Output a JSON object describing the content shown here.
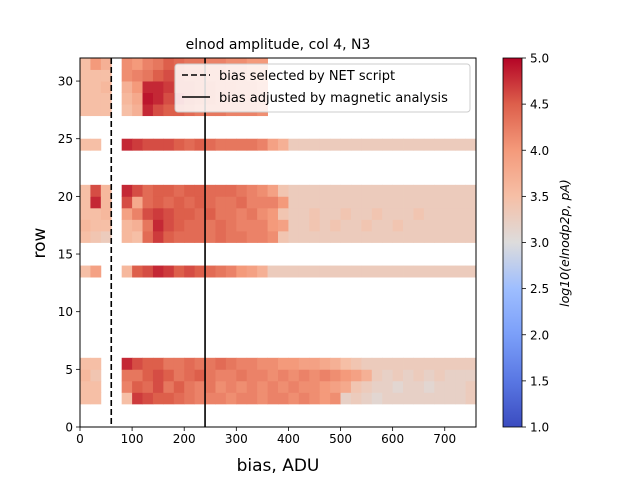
{
  "chart_data": {
    "type": "heatmap",
    "title": "elnod amplitude, col 4, N3",
    "xlabel": "bias, ADU",
    "ylabel": "row",
    "xlim": [
      0,
      760
    ],
    "ylim": [
      0,
      32
    ],
    "x_ticks": [
      "0",
      "100",
      "200",
      "300",
      "400",
      "500",
      "600",
      "700"
    ],
    "y_ticks": [
      "0",
      "5",
      "10",
      "15",
      "20",
      "25",
      "30"
    ],
    "bin_width": 20,
    "colorbar": {
      "label": "log10(elnodp2p, pA)",
      "range": [
        1.0,
        5.0
      ],
      "ticks": [
        "1.0",
        "1.5",
        "2.0",
        "2.5",
        "3.0",
        "3.5",
        "4.0",
        "4.5",
        "5.0"
      ],
      "colormap": "coolwarm"
    },
    "lines": [
      {
        "label": "bias selected by NET script",
        "x": 60,
        "style": "dashed",
        "color": "#000000"
      },
      {
        "label": "bias adjusted by magnetic analysis",
        "x": 240,
        "style": "solid",
        "color": "#000000"
      }
    ],
    "legend_position": "top-right",
    "grid": false,
    "rows": [
      {
        "row": 3,
        "levels": [
          3.5,
          3.5,
          null,
          null,
          3.5,
          4.7,
          4.6,
          4.5,
          4.5,
          4.4,
          4.3,
          4.2,
          4.2,
          4.2,
          4.1,
          4.2,
          4.2,
          4.1,
          4.2,
          4.2,
          4.1,
          4.2,
          4.1,
          4.0,
          4.1,
          3.2,
          3.3,
          3.2,
          3.1,
          3.2,
          3.2,
          3.2,
          3.2,
          3.2,
          3.2,
          3.2,
          3.2,
          3.3
        ]
      },
      {
        "row": 4,
        "levels": [
          3.5,
          3.5,
          null,
          null,
          4.2,
          4.5,
          4.4,
          4.6,
          4.3,
          4.5,
          4.3,
          4.2,
          4.3,
          4.1,
          4.2,
          4.1,
          4.2,
          4.1,
          4.2,
          4.1,
          4.2,
          4.1,
          4.1,
          4.0,
          3.9,
          3.8,
          3.4,
          3.3,
          3.2,
          3.2,
          3.1,
          3.2,
          3.2,
          3.1,
          3.2,
          3.2,
          3.2,
          3.3
        ]
      },
      {
        "row": 5,
        "levels": [
          3.6,
          3.4,
          null,
          null,
          4.3,
          4.3,
          4.5,
          4.6,
          4.5,
          4.3,
          4.4,
          4.5,
          4.3,
          4.2,
          4.2,
          4.3,
          4.2,
          4.2,
          4.1,
          4.2,
          4.1,
          4.2,
          4.1,
          4.2,
          4.1,
          4.0,
          3.9,
          3.7,
          3.3,
          3.2,
          3.3,
          3.2,
          3.3,
          3.2,
          3.3,
          3.2,
          3.2,
          3.2
        ]
      },
      {
        "row": 6,
        "levels": [
          3.5,
          3.5,
          null,
          null,
          4.8,
          4.6,
          4.5,
          4.5,
          4.3,
          4.3,
          4.4,
          4.3,
          4.3,
          4.4,
          4.3,
          4.2,
          4.2,
          4.1,
          4.1,
          4.0,
          4.0,
          3.9,
          3.9,
          3.8,
          3.7,
          3.5,
          3.4,
          3.3,
          3.3,
          3.3,
          3.3,
          3.3,
          3.3,
          3.3,
          3.3,
          3.3,
          3.3,
          3.3
        ]
      },
      {
        "row": 14,
        "levels": [
          3.5,
          3.9,
          null,
          null,
          3.6,
          4.5,
          4.6,
          4.8,
          4.7,
          4.5,
          4.6,
          4.5,
          4.4,
          4.3,
          4.2,
          4.0,
          3.9,
          3.7,
          3.3,
          3.3,
          3.3,
          3.3,
          3.3,
          3.3,
          3.3,
          3.3,
          3.3,
          3.3,
          3.3,
          3.3,
          3.3,
          3.3,
          3.3,
          3.3,
          3.3,
          3.3,
          3.3,
          3.3
        ]
      },
      {
        "row": 17,
        "levels": [
          3.5,
          3.4,
          3.3,
          null,
          3.6,
          3.5,
          4.4,
          4.7,
          4.5,
          4.4,
          4.4,
          4.4,
          4.3,
          4.4,
          4.3,
          4.3,
          4.2,
          4.2,
          4.1,
          3.4,
          3.3,
          3.3,
          3.3,
          3.3,
          3.3,
          3.3,
          3.3,
          3.3,
          3.3,
          3.3,
          3.3,
          3.3,
          3.3,
          3.3,
          3.3,
          3.3,
          3.3,
          3.3
        ]
      },
      {
        "row": 18,
        "levels": [
          3.6,
          3.5,
          3.5,
          null,
          3.6,
          3.7,
          4.3,
          4.8,
          4.6,
          4.5,
          4.4,
          4.4,
          4.3,
          4.4,
          4.3,
          4.2,
          4.2,
          4.2,
          4.0,
          3.9,
          3.3,
          3.3,
          3.4,
          3.3,
          3.4,
          3.3,
          3.3,
          3.4,
          3.3,
          3.3,
          3.4,
          3.3,
          3.3,
          3.3,
          3.3,
          3.3,
          3.3,
          3.3
        ]
      },
      {
        "row": 19,
        "levels": [
          3.5,
          3.5,
          3.6,
          null,
          3.9,
          4.2,
          4.6,
          4.7,
          4.6,
          4.5,
          4.5,
          4.4,
          4.5,
          4.3,
          4.3,
          4.2,
          4.3,
          4.1,
          4.0,
          3.4,
          3.3,
          3.3,
          3.4,
          3.3,
          3.3,
          3.4,
          3.3,
          3.3,
          3.4,
          3.3,
          3.3,
          3.3,
          3.4,
          3.3,
          3.3,
          3.3,
          3.3,
          3.3
        ]
      },
      {
        "row": 20,
        "levels": [
          3.5,
          4.8,
          3.6,
          null,
          4.6,
          3.8,
          4.4,
          4.5,
          4.4,
          4.5,
          4.4,
          4.5,
          4.4,
          4.3,
          4.3,
          4.4,
          4.2,
          4.2,
          4.2,
          4.0,
          3.3,
          3.3,
          3.3,
          3.3,
          3.3,
          3.3,
          3.3,
          3.3,
          3.3,
          3.3,
          3.3,
          3.3,
          3.3,
          3.3,
          3.3,
          3.3,
          3.3,
          3.3
        ]
      },
      {
        "row": 21,
        "levels": [
          3.5,
          4.6,
          3.6,
          null,
          4.8,
          4.6,
          4.4,
          4.5,
          4.5,
          4.4,
          4.5,
          4.5,
          4.4,
          4.4,
          4.4,
          4.3,
          4.2,
          4.1,
          3.9,
          3.4,
          3.3,
          3.3,
          3.3,
          3.3,
          3.3,
          3.3,
          3.3,
          3.3,
          3.3,
          3.3,
          3.3,
          3.3,
          3.3,
          3.3,
          3.3,
          3.3,
          3.3,
          3.3
        ]
      },
      {
        "row": 25,
        "levels": [
          3.5,
          3.5,
          null,
          null,
          4.8,
          4.7,
          4.6,
          4.6,
          4.6,
          4.5,
          4.4,
          4.5,
          4.4,
          4.3,
          4.3,
          4.3,
          4.3,
          4.2,
          3.9,
          3.7,
          3.3,
          3.3,
          3.3,
          3.3,
          3.3,
          3.3,
          3.3,
          3.3,
          3.3,
          3.3,
          3.3,
          3.3,
          3.3,
          3.3,
          3.3,
          3.3,
          3.3,
          3.3
        ]
      },
      {
        "row": 28,
        "levels": [
          3.5,
          3.5,
          3.5,
          null,
          3.5,
          3.7,
          4.8,
          4.6,
          4.5,
          4.5,
          4.4,
          4.3,
          4.3,
          4.3,
          4.2,
          4.2,
          4.2,
          4.1,
          null,
          null,
          null,
          null,
          null,
          null,
          null,
          null,
          null,
          null,
          null,
          null,
          null,
          null,
          null,
          null,
          null,
          null,
          null,
          null
        ]
      },
      {
        "row": 29,
        "levels": [
          3.5,
          3.5,
          3.5,
          null,
          3.6,
          3.8,
          4.9,
          4.8,
          4.6,
          4.7,
          4.5,
          4.4,
          4.4,
          4.3,
          4.3,
          4.2,
          4.2,
          4.1,
          null,
          null,
          null,
          null,
          null,
          null,
          null,
          null,
          null,
          null,
          null,
          null,
          null,
          null,
          null,
          null,
          null,
          null,
          null,
          null
        ]
      },
      {
        "row": 30,
        "levels": [
          3.5,
          3.5,
          3.6,
          null,
          3.7,
          4.0,
          4.8,
          4.8,
          4.7,
          4.5,
          4.5,
          4.4,
          4.4,
          4.3,
          4.3,
          4.2,
          4.2,
          4.1,
          null,
          null,
          null,
          null,
          null,
          null,
          null,
          null,
          null,
          null,
          null,
          null,
          null,
          null,
          null,
          null,
          null,
          null,
          null,
          null
        ]
      },
      {
        "row": 31,
        "levels": [
          3.5,
          3.5,
          3.5,
          null,
          4.1,
          4.2,
          4.3,
          4.5,
          4.6,
          4.5,
          4.4,
          4.4,
          4.3,
          4.3,
          4.2,
          4.2,
          4.1,
          4.0,
          null,
          null,
          null,
          null,
          null,
          null,
          null,
          null,
          null,
          null,
          null,
          null,
          null,
          null,
          null,
          null,
          null,
          null,
          null,
          null
        ]
      },
      {
        "row": 32,
        "levels": [
          3.5,
          4.0,
          3.7,
          null,
          4.1,
          4.0,
          4.2,
          4.3,
          4.5,
          4.4,
          4.3,
          4.3,
          4.2,
          4.2,
          4.1,
          4.1,
          4.0,
          4.0,
          null,
          null,
          null,
          null,
          null,
          null,
          null,
          null,
          null,
          null,
          null,
          null,
          null,
          null,
          null,
          null,
          null,
          null,
          null,
          null
        ]
      }
    ]
  }
}
